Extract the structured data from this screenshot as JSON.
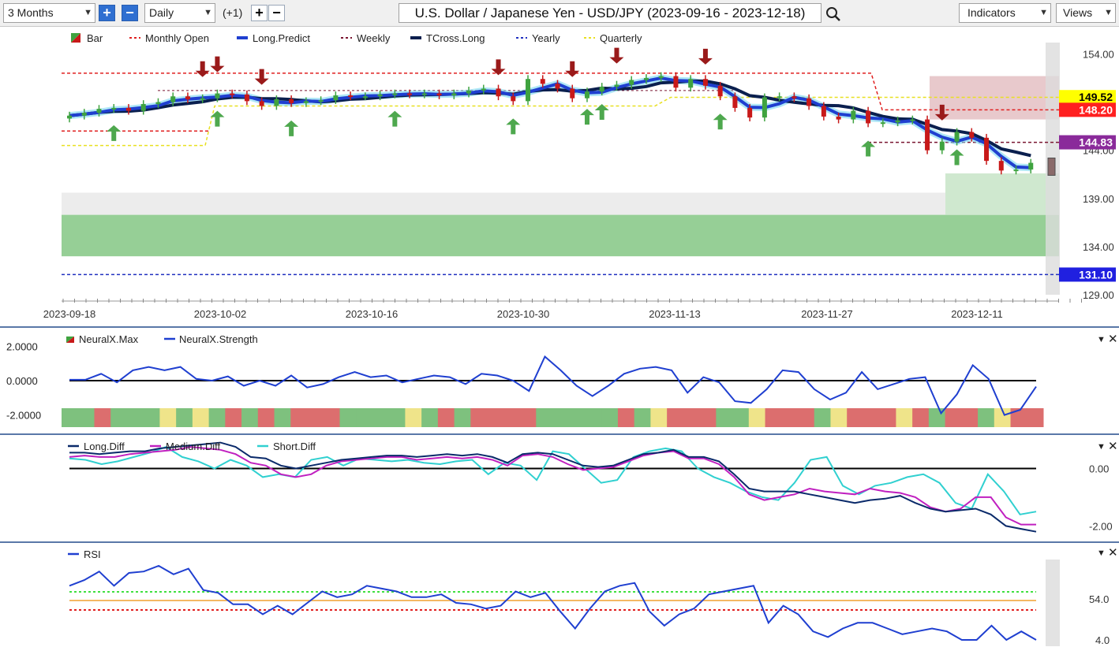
{
  "toolbar": {
    "range": "3 Months",
    "interval": "Daily",
    "offset": "(+1)",
    "title": "U.S. Dollar / Japanese Yen - USD/JPY (2023-09-16 - 2023-12-18)",
    "indicators": "Indicators",
    "views": "Views"
  },
  "colors": {
    "up": "#3fa33f",
    "down": "#c81919",
    "long_predict": "#1f3fd0",
    "tcross": "#0a1f4e",
    "monthly": "#e02020",
    "weekly": "#7a1530",
    "yearly": "#2030c0",
    "quarterly": "#e8e020",
    "strength": "#1f3fd0",
    "long_diff": "#0a2a6a",
    "medium_diff": "#c020c0",
    "short_diff": "#30d0d0",
    "rsi": "#1f3fd0"
  },
  "chart_data": [
    {
      "type": "candlestick",
      "title": "U.S. Dollar / Japanese Yen - USD/JPY",
      "legend": [
        "Bar",
        "Monthly Open",
        "Long.Predict",
        "Weekly",
        "TCross.Long",
        "Yearly",
        "Quarterly"
      ],
      "x_ticks": [
        "2023-09-18",
        "2023-10-02",
        "2023-10-16",
        "2023-10-30",
        "2023-11-13",
        "2023-11-27",
        "2023-12-11"
      ],
      "y_ticks": [
        154.0,
        149.0,
        144.0,
        139.0,
        134.0,
        129.0
      ],
      "ylim": [
        128.6,
        156.0
      ],
      "price_labels": [
        {
          "value": "149.52",
          "y": 149.52,
          "color": "#ffff00",
          "text_color": "#000000"
        },
        {
          "value": "148.20",
          "y": 148.2,
          "color": "#ff2020",
          "text_color": "#ffffff"
        },
        {
          "value": "144.83",
          "y": 144.83,
          "color": "#8a2a9a",
          "text_color": "#ffffff"
        },
        {
          "value": "131.10",
          "y": 131.1,
          "color": "#2020e0",
          "text_color": "#ffffff"
        }
      ],
      "dates": [
        "2023-09-18",
        "2023-09-19",
        "2023-09-20",
        "2023-09-21",
        "2023-09-22",
        "2023-09-25",
        "2023-09-26",
        "2023-09-27",
        "2023-09-28",
        "2023-09-29",
        "2023-10-02",
        "2023-10-03",
        "2023-10-04",
        "2023-10-05",
        "2023-10-06",
        "2023-10-09",
        "2023-10-10",
        "2023-10-11",
        "2023-10-12",
        "2023-10-13",
        "2023-10-16",
        "2023-10-17",
        "2023-10-18",
        "2023-10-19",
        "2023-10-20",
        "2023-10-23",
        "2023-10-24",
        "2023-10-25",
        "2023-10-26",
        "2023-10-27",
        "2023-10-30",
        "2023-10-31",
        "2023-11-01",
        "2023-11-02",
        "2023-11-03",
        "2023-11-06",
        "2023-11-07",
        "2023-11-08",
        "2023-11-09",
        "2023-11-10",
        "2023-11-13",
        "2023-11-14",
        "2023-11-15",
        "2023-11-16",
        "2023-11-17",
        "2023-11-20",
        "2023-11-21",
        "2023-11-22",
        "2023-11-23",
        "2023-11-24",
        "2023-11-27",
        "2023-11-28",
        "2023-11-29",
        "2023-11-30",
        "2023-12-01",
        "2023-12-04",
        "2023-12-05",
        "2023-12-06",
        "2023-12-07",
        "2023-12-08",
        "2023-12-11",
        "2023-12-12",
        "2023-12-13",
        "2023-12-14",
        "2023-12-15",
        "2023-12-18"
      ],
      "close": [
        147.6,
        147.9,
        148.3,
        148.4,
        148.1,
        148.8,
        149.0,
        149.6,
        149.3,
        149.4,
        149.9,
        149.8,
        149.1,
        148.6,
        149.3,
        148.9,
        149.1,
        149.2,
        149.7,
        149.6,
        149.6,
        149.8,
        149.9,
        149.8,
        149.9,
        149.7,
        149.9,
        150.2,
        150.4,
        149.6,
        149.1,
        151.4,
        150.9,
        150.4,
        149.4,
        150.1,
        150.6,
        150.8,
        151.3,
        151.5,
        151.7,
        150.5,
        151.4,
        150.7,
        149.6,
        148.4,
        147.4,
        149.5,
        149.6,
        149.4,
        148.6,
        147.5,
        147.2,
        148.1,
        146.8,
        146.9,
        147.1,
        147.2,
        144.0,
        144.9,
        145.9,
        145.3,
        142.9,
        141.9,
        142.0,
        142.7
      ],
      "predicted_open_next": 142.8
    },
    {
      "type": "line",
      "legend": [
        "NeuralX.Max",
        "NeuralX.Strength"
      ],
      "y_ticks": [
        2.0,
        0.0,
        -2.0
      ],
      "y_tick_labels": [
        "2.0000",
        "0.0000",
        "-2.0000"
      ],
      "ylim": [
        -2.8,
        2.8
      ],
      "strength": [
        0.05,
        0.05,
        0.4,
        -0.1,
        0.6,
        0.8,
        0.6,
        0.8,
        0.1,
        0.0,
        0.25,
        -0.3,
        0.0,
        -0.3,
        0.3,
        -0.4,
        -0.2,
        0.2,
        0.5,
        0.2,
        0.3,
        -0.1,
        0.1,
        0.3,
        0.2,
        -0.2,
        0.4,
        0.3,
        0.0,
        -0.6,
        1.4,
        0.6,
        -0.3,
        -0.9,
        -0.3,
        0.4,
        0.7,
        0.8,
        0.6,
        -0.7,
        0.2,
        -0.1,
        -1.2,
        -1.3,
        -0.5,
        0.6,
        0.5,
        -0.5,
        -1.1,
        -0.7,
        0.5,
        -0.5,
        -0.2,
        0.1,
        0.2,
        -1.9,
        -0.8,
        0.9,
        0.1,
        -2.0,
        -1.7,
        -0.35
      ],
      "bar_states": [
        "g",
        "g",
        "r",
        "g",
        "g",
        "g",
        "y",
        "g",
        "y",
        "g",
        "r",
        "g",
        "r",
        "g",
        "r",
        "r",
        "r",
        "g",
        "g",
        "g",
        "g",
        "y",
        "g",
        "r",
        "g",
        "r",
        "r",
        "r",
        "r",
        "g",
        "g",
        "g",
        "g",
        "g",
        "r",
        "g",
        "y",
        "r",
        "r",
        "r",
        "g",
        "g",
        "y",
        "r",
        "r",
        "r",
        "g",
        "y",
        "r",
        "r",
        "r",
        "y",
        "r",
        "g",
        "r",
        "r",
        "g",
        "y",
        "r",
        "r"
      ]
    },
    {
      "type": "line",
      "legend": [
        "Long.Diff",
        "Medium.Diff",
        "Short.Diff"
      ],
      "y_ticks": [
        0.0,
        -2.0
      ],
      "y_tick_labels": [
        "0.00",
        "-2.00"
      ],
      "ylim": [
        -2.4,
        1.0
      ],
      "series": [
        {
          "name": "Long.Diff",
          "values": [
            0.55,
            0.55,
            0.5,
            0.55,
            0.6,
            0.6,
            0.7,
            0.75,
            0.8,
            0.85,
            0.9,
            0.75,
            0.4,
            0.35,
            0.1,
            0.0,
            0.1,
            0.2,
            0.3,
            0.35,
            0.4,
            0.45,
            0.45,
            0.4,
            0.45,
            0.5,
            0.45,
            0.5,
            0.4,
            0.2,
            0.5,
            0.55,
            0.5,
            0.3,
            0.1,
            0.05,
            0.1,
            0.3,
            0.5,
            0.55,
            0.65,
            0.4,
            0.4,
            0.25,
            -0.2,
            -0.7,
            -0.8,
            -0.8,
            -0.8,
            -0.9,
            -1.0,
            -1.1,
            -1.2,
            -1.1,
            -1.05,
            -0.95,
            -1.2,
            -1.4,
            -1.5,
            -1.45,
            -1.4,
            -1.6,
            -2.0,
            -2.1,
            -2.2
          ]
        },
        {
          "name": "Medium.Diff",
          "values": [
            0.4,
            0.45,
            0.4,
            0.4,
            0.5,
            0.55,
            0.6,
            0.65,
            0.75,
            0.7,
            0.65,
            0.5,
            0.2,
            0.1,
            -0.2,
            -0.3,
            -0.2,
            0.1,
            0.25,
            0.3,
            0.35,
            0.4,
            0.4,
            0.3,
            0.35,
            0.4,
            0.35,
            0.4,
            0.3,
            0.1,
            0.45,
            0.5,
            0.4,
            0.15,
            -0.05,
            0.0,
            0.05,
            0.25,
            0.45,
            0.55,
            0.6,
            0.35,
            0.35,
            0.15,
            -0.3,
            -0.9,
            -1.1,
            -1.0,
            -0.9,
            -0.7,
            -0.8,
            -0.85,
            -0.9,
            -0.7,
            -0.8,
            -0.85,
            -1.0,
            -1.35,
            -1.5,
            -1.4,
            -1.0,
            -1.0,
            -1.7,
            -1.95,
            -1.95
          ]
        },
        {
          "name": "Short.Diff",
          "values": [
            0.35,
            0.3,
            0.15,
            0.25,
            0.4,
            0.55,
            0.75,
            0.4,
            0.25,
            0.0,
            0.3,
            0.1,
            -0.3,
            -0.2,
            -0.3,
            0.3,
            0.4,
            0.1,
            0.35,
            0.3,
            0.25,
            0.3,
            0.2,
            0.15,
            0.25,
            0.3,
            -0.2,
            0.2,
            0.1,
            -0.4,
            0.6,
            0.5,
            0.0,
            -0.5,
            -0.4,
            0.4,
            0.6,
            0.7,
            0.6,
            0.0,
            -0.3,
            -0.5,
            -0.8,
            -1.0,
            -1.1,
            -0.5,
            0.3,
            0.4,
            -0.6,
            -0.9,
            -0.6,
            -0.5,
            -0.3,
            -0.2,
            -0.5,
            -1.2,
            -1.4,
            -0.2,
            -0.8,
            -1.6,
            -1.5
          ]
        }
      ]
    },
    {
      "type": "line",
      "legend": [
        "RSI"
      ],
      "y_ticks": [
        54.0,
        4.0
      ],
      "y_tick_labels": [
        "54.0",
        "4.0"
      ],
      "ylim": [
        0,
        100
      ],
      "levels": [
        70,
        60,
        50
      ],
      "rsi": [
        78,
        82,
        88,
        78,
        87,
        88,
        92,
        86,
        90,
        75,
        73,
        65,
        65,
        58,
        64,
        58,
        66,
        74,
        70,
        72,
        78,
        76,
        74,
        70,
        70,
        72,
        66,
        65,
        62,
        64,
        74,
        70,
        73,
        60,
        48,
        62,
        74,
        78,
        80,
        60,
        50,
        58,
        62,
        72,
        74,
        76,
        78,
        52,
        64,
        58,
        46,
        42,
        48,
        52,
        52,
        48,
        44,
        46,
        48,
        46,
        40,
        40,
        50,
        40,
        46,
        40
      ]
    }
  ]
}
